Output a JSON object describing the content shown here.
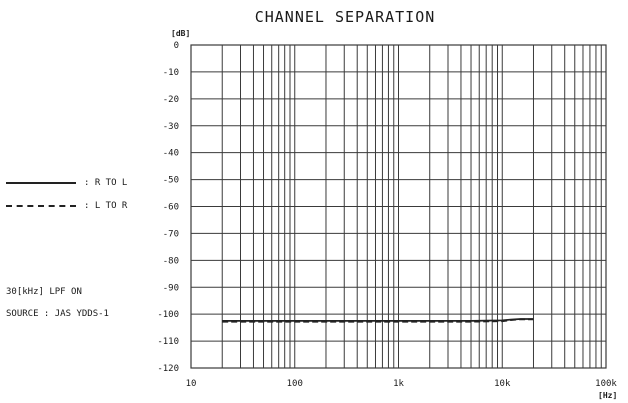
{
  "chart_data": {
    "type": "line",
    "title": "CHANNEL SEPARATION",
    "y_unit": "[dB]",
    "x_unit": "[Hz]",
    "x_scale": "log",
    "xlim": [
      10,
      100000
    ],
    "ylim": [
      -120,
      0
    ],
    "grid": true,
    "legend_placement": "left",
    "x_ticks": [
      {
        "value": 10,
        "label": "10"
      },
      {
        "value": 100,
        "label": "100"
      },
      {
        "value": 1000,
        "label": "1k"
      },
      {
        "value": 10000,
        "label": "10k"
      },
      {
        "value": 100000,
        "label": "100k"
      }
    ],
    "y_ticks": [
      {
        "value": 0,
        "label": "0"
      },
      {
        "value": -10,
        "label": "-10"
      },
      {
        "value": -20,
        "label": "-20"
      },
      {
        "value": -30,
        "label": "-30"
      },
      {
        "value": -40,
        "label": "-40"
      },
      {
        "value": -50,
        "label": "-50"
      },
      {
        "value": -60,
        "label": "-60"
      },
      {
        "value": -70,
        "label": "-70"
      },
      {
        "value": -80,
        "label": "-80"
      },
      {
        "value": -90,
        "label": "-90"
      },
      {
        "value": -100,
        "label": "-100"
      },
      {
        "value": -110,
        "label": "-110"
      },
      {
        "value": -120,
        "label": "-120"
      }
    ],
    "series": [
      {
        "name": ": R TO L",
        "style": "solid",
        "x": [
          20,
          50,
          100,
          200,
          500,
          1000,
          2000,
          5000,
          10000,
          12000,
          15000,
          20000
        ],
        "y": [
          -102.5,
          -102.5,
          -102.5,
          -102.5,
          -102.5,
          -102.5,
          -102.5,
          -102.5,
          -102.3,
          -102.0,
          -101.8,
          -101.8
        ]
      },
      {
        "name": ": L TO R",
        "style": "dashed",
        "x": [
          20,
          50,
          100,
          200,
          500,
          1000,
          2000,
          5000,
          10000,
          12000,
          15000,
          20000
        ],
        "y": [
          -102.8,
          -102.8,
          -102.8,
          -102.8,
          -102.8,
          -102.8,
          -102.8,
          -102.8,
          -102.6,
          -102.2,
          -101.9,
          -101.9
        ]
      }
    ]
  },
  "notes": {
    "filter": "30[kHz] LPF ON",
    "source": "SOURCE : JAS YDDS-1"
  },
  "colors": {
    "grid": "#3a3a3a",
    "line": "#222222"
  }
}
